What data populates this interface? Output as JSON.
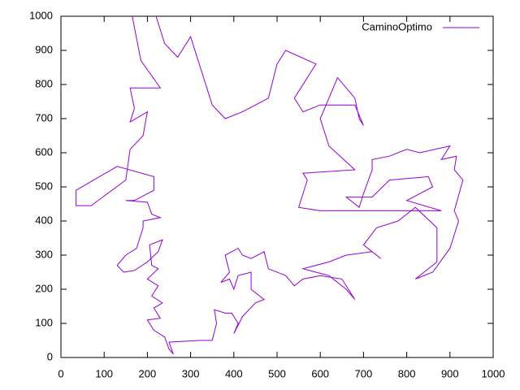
{
  "chart_data": {
    "type": "line",
    "x": [
      165,
      185,
      230,
      160,
      170,
      160,
      200,
      190,
      160,
      150,
      70,
      35,
      35,
      130,
      215,
      215,
      170,
      150,
      200,
      210,
      230,
      190,
      190,
      175,
      150,
      130,
      145,
      170,
      200,
      225,
      235,
      205,
      210,
      225,
      200,
      225,
      210,
      235,
      215,
      230,
      200,
      215,
      240,
      250,
      260,
      250,
      320,
      350,
      360,
      355,
      380,
      395,
      410,
      400,
      420,
      450,
      470,
      440,
      440,
      410,
      400,
      390,
      370,
      390,
      380,
      410,
      420,
      440,
      470,
      480,
      520,
      540,
      560,
      600,
      650,
      680,
      660,
      620,
      560,
      620,
      660,
      720,
      740,
      700,
      730,
      780,
      820,
      870,
      870,
      820,
      860,
      900,
      920,
      910,
      930,
      910,
      915,
      880,
      900,
      830,
      800,
      760,
      720,
      720,
      700,
      690,
      660,
      720,
      760,
      850,
      860,
      800,
      880,
      770,
      680,
      600,
      550,
      570,
      560,
      680,
      620,
      600,
      640,
      680,
      690,
      700,
      680,
      600,
      560,
      540,
      590,
      520,
      500,
      480,
      420,
      380,
      350,
      330,
      300,
      270,
      240,
      220
    ],
    "series": [
      {
        "name": "CaminoOptimo",
        "color": "#9400d3",
        "values": [
          1000,
          870,
          790,
          790,
          730,
          690,
          720,
          650,
          610,
          520,
          445,
          445,
          490,
          560,
          530,
          490,
          460,
          460,
          455,
          420,
          410,
          400,
          380,
          320,
          300,
          270,
          250,
          255,
          280,
          310,
          345,
          330,
          270,
          260,
          230,
          210,
          180,
          160,
          145,
          115,
          110,
          80,
          60,
          25,
          10,
          45,
          50,
          50,
          100,
          140,
          130,
          130,
          100,
          70,
          120,
          160,
          170,
          200,
          250,
          240,
          200,
          230,
          220,
          250,
          300,
          320,
          300,
          290,
          310,
          260,
          240,
          210,
          230,
          240,
          230,
          170,
          200,
          240,
          260,
          280,
          300,
          310,
          290,
          330,
          380,
          400,
          440,
          380,
          280,
          230,
          250,
          320,
          400,
          430,
          520,
          550,
          590,
          580,
          620,
          600,
          610,
          590,
          580,
          550,
          480,
          440,
          470,
          470,
          520,
          530,
          500,
          460,
          430,
          430,
          430,
          430,
          440,
          520,
          540,
          550,
          620,
          700,
          820,
          760,
          700,
          680,
          740,
          740,
          720,
          760,
          860,
          900,
          860,
          760,
          720,
          700,
          740,
          820,
          940,
          880,
          920,
          1000
        ]
      }
    ],
    "xlim": [
      0,
      1000
    ],
    "ylim": [
      0,
      1000
    ],
    "xticks": [
      0,
      100,
      200,
      300,
      400,
      500,
      600,
      700,
      800,
      900,
      1000
    ],
    "yticks": [
      0,
      100,
      200,
      300,
      400,
      500,
      600,
      700,
      800,
      900,
      1000
    ],
    "legend": "top-right"
  }
}
